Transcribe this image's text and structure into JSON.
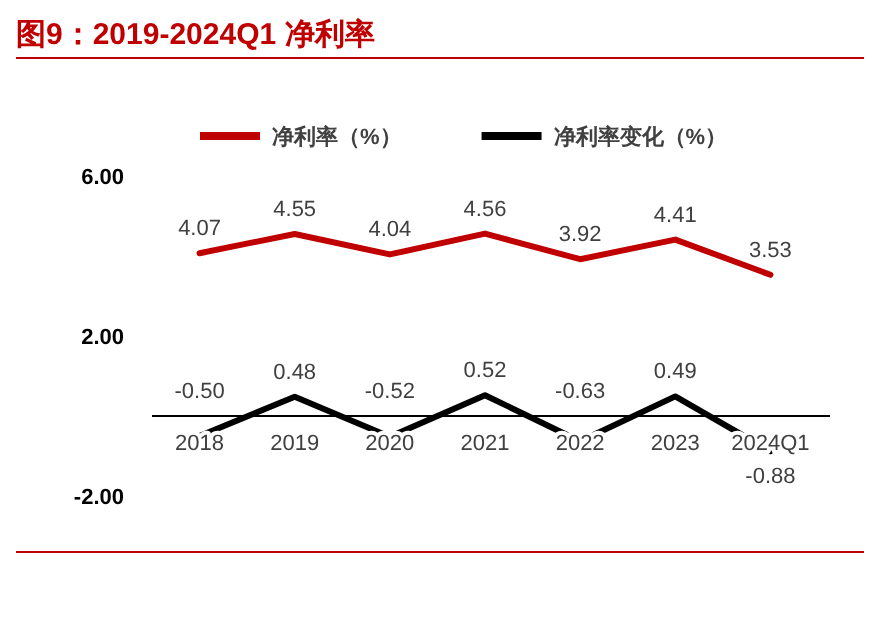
{
  "chart_data": {
    "type": "line",
    "title": "图9：2019-2024Q1 净利率",
    "categories": [
      "2018",
      "2019",
      "2020",
      "2021",
      "2022",
      "2023",
      "2024Q1"
    ],
    "series": [
      {
        "name": "净利率（%）",
        "color": "#c00000",
        "values": [
          4.07,
          4.55,
          4.04,
          4.56,
          3.92,
          4.41,
          3.53
        ],
        "value_labels": [
          "4.07",
          "4.55",
          "4.04",
          "4.56",
          "3.92",
          "4.41",
          "3.53"
        ]
      },
      {
        "name": "净利率变化（%）",
        "color": "#000000",
        "values": [
          -0.5,
          0.48,
          -0.52,
          0.52,
          -0.63,
          0.49,
          -0.88
        ],
        "value_labels": [
          "-0.50",
          "0.48",
          "-0.52",
          "0.52",
          "-0.63",
          "0.49",
          "-0.88"
        ]
      }
    ],
    "ylim": [
      -2,
      6
    ],
    "yticks": [
      {
        "value": 6,
        "label": "6.00"
      },
      {
        "value": 2,
        "label": "2.00"
      },
      {
        "value": -2,
        "label": "-2.00"
      }
    ],
    "legend": "top",
    "grid": false,
    "marker": "none",
    "line_style": "solid"
  }
}
